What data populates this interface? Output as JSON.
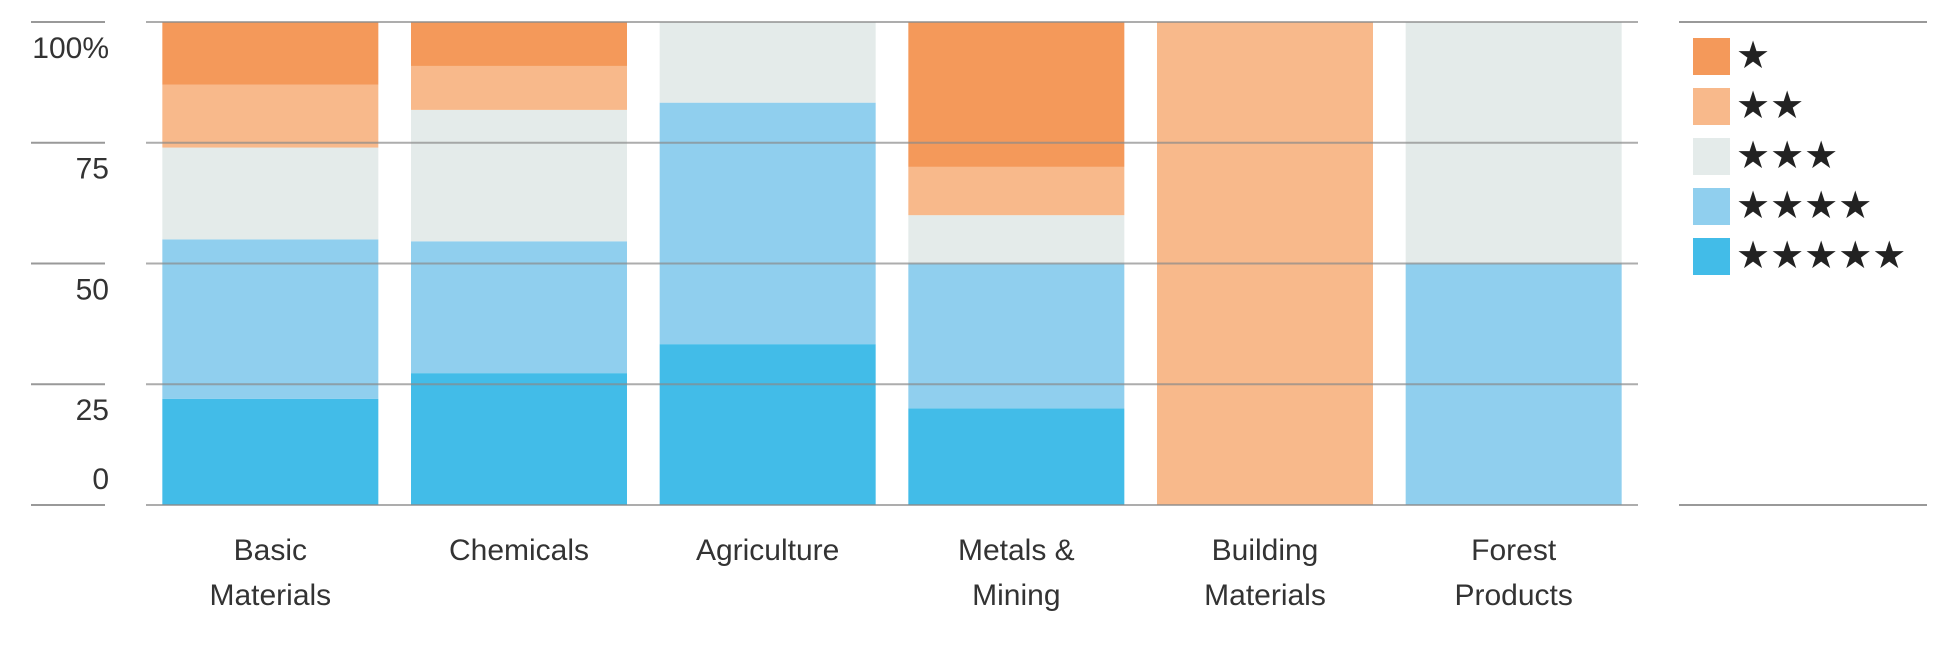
{
  "chart_data": {
    "type": "stacked_bar",
    "categories": [
      "Basic Materials",
      "Chemicals",
      "Agriculture",
      "Metals & Mining",
      "Building Materials",
      "Forest Products"
    ],
    "series": [
      {
        "name": "★★★★★",
        "color": "#42bce8",
        "values": [
          22,
          27.3,
          33.3,
          20,
          0,
          0
        ]
      },
      {
        "name": "★★★★",
        "color": "#90cfee",
        "values": [
          33,
          27.3,
          50,
          30,
          0,
          50
        ]
      },
      {
        "name": "★★★",
        "color": "#e4ebea",
        "values": [
          19,
          27.2,
          16.7,
          10,
          0,
          50
        ]
      },
      {
        "name": "★★",
        "color": "#f8b98b",
        "values": [
          13,
          9.1,
          0,
          10,
          100,
          0
        ]
      },
      {
        "name": "★",
        "color": "#f4995a",
        "values": [
          13,
          9.1,
          0,
          30,
          0,
          0
        ]
      }
    ],
    "ylim": [
      0,
      100
    ],
    "yticks": [
      0,
      25,
      50,
      75,
      {
        "value": 100,
        "label": "100%"
      }
    ],
    "grid": true
  }
}
